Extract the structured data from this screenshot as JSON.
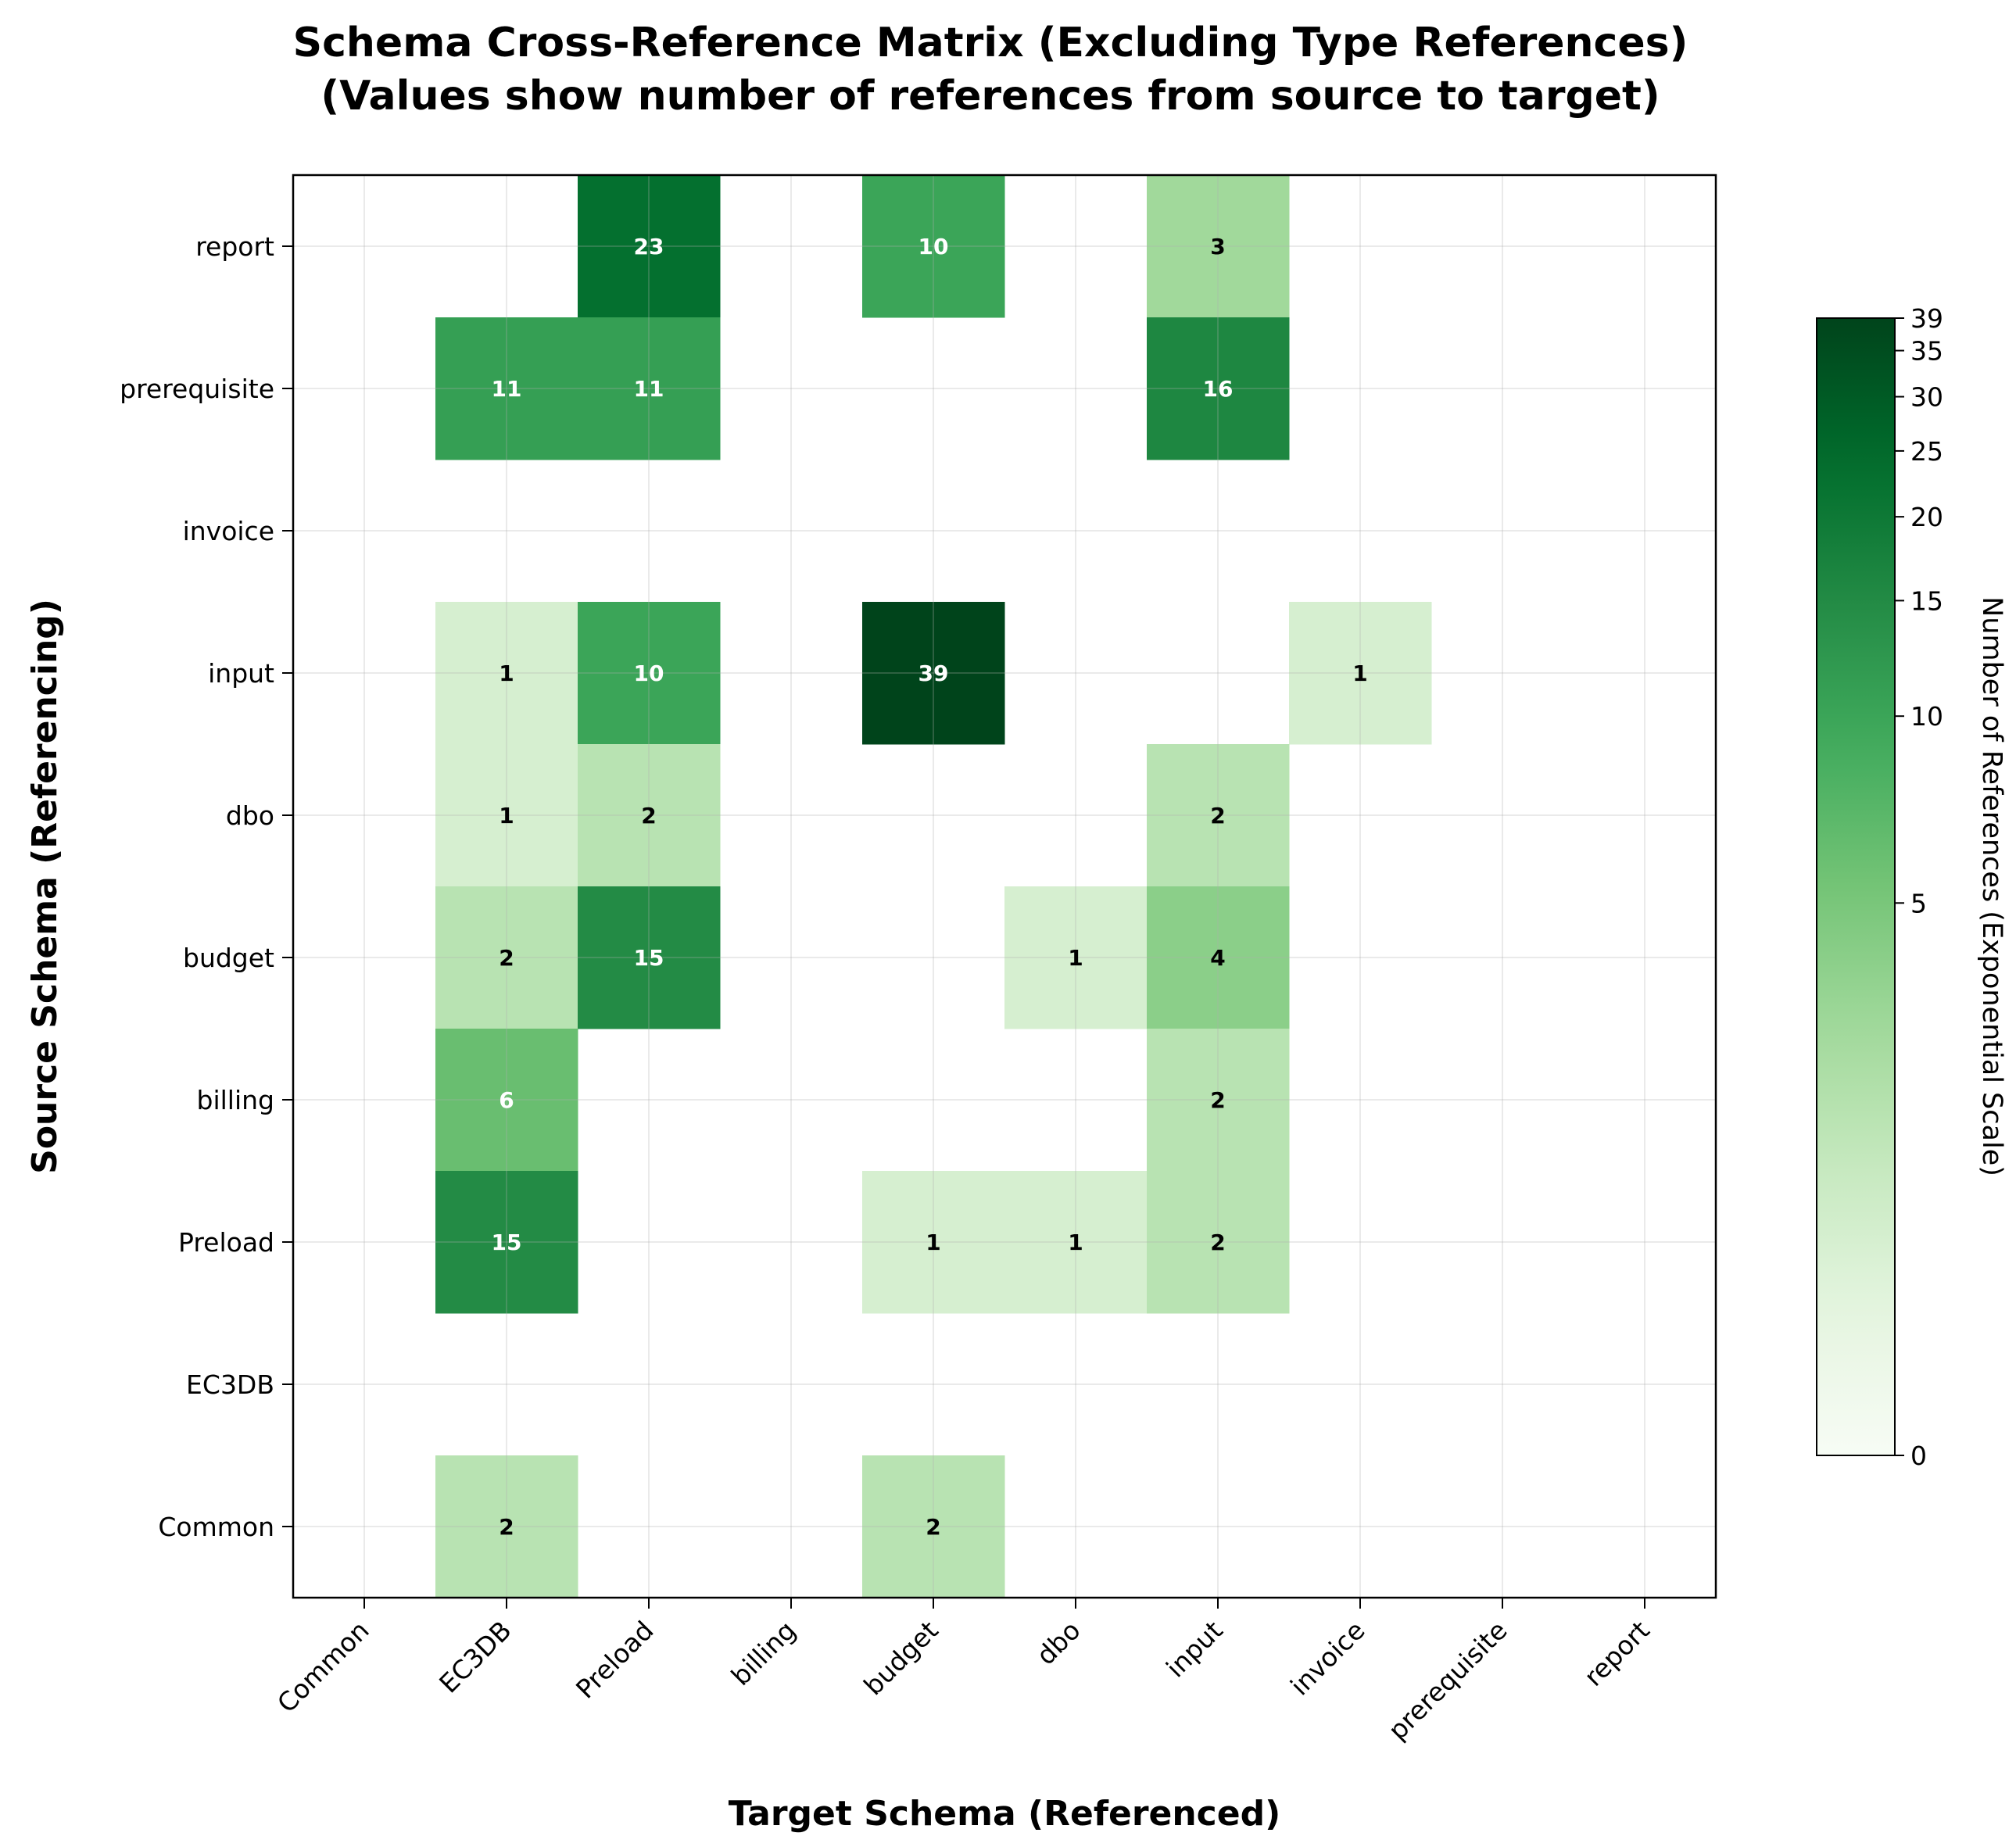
{
  "chart_data": {
    "type": "heatmap",
    "title": "Schema Cross-Reference Matrix (Excluding Type References)",
    "subtitle": "(Values show number of references from source to target)",
    "xlabel": "Target Schema (Referenced)",
    "ylabel": "Source Schema (Referencing)",
    "x_categories": [
      "Common",
      "EC3DB",
      "Preload",
      "billing",
      "budget",
      "dbo",
      "input",
      "invoice",
      "prerequisite",
      "report"
    ],
    "y_categories": [
      "report",
      "prerequisite",
      "invoice",
      "input",
      "dbo",
      "budget",
      "billing",
      "Preload",
      "EC3DB",
      "Common"
    ],
    "values": [
      [
        0,
        0,
        23,
        0,
        10,
        0,
        3,
        0,
        0,
        0
      ],
      [
        0,
        11,
        11,
        0,
        0,
        0,
        16,
        0,
        0,
        0
      ],
      [
        0,
        0,
        0,
        0,
        0,
        0,
        0,
        0,
        0,
        0
      ],
      [
        0,
        1,
        10,
        0,
        39,
        0,
        0,
        1,
        0,
        0
      ],
      [
        0,
        1,
        2,
        0,
        0,
        0,
        2,
        0,
        0,
        0
      ],
      [
        0,
        2,
        15,
        0,
        0,
        1,
        4,
        0,
        0,
        0
      ],
      [
        0,
        6,
        0,
        0,
        0,
        0,
        2,
        0,
        0,
        0
      ],
      [
        0,
        15,
        0,
        0,
        1,
        1,
        2,
        0,
        0,
        0
      ],
      [
        0,
        0,
        0,
        0,
        0,
        0,
        0,
        0,
        0,
        0
      ],
      [
        0,
        2,
        0,
        0,
        2,
        0,
        0,
        0,
        0,
        0
      ]
    ],
    "colorbar": {
      "label": "Number of References (Exponential Scale)",
      "min": 0,
      "max": 39,
      "ticks": [
        0,
        5,
        10,
        15,
        20,
        25,
        30,
        35,
        39
      ],
      "scale": "exponential"
    },
    "colormap": [
      "#f7fcf5",
      "#e5f5e0",
      "#c7e9c0",
      "#a1d99b",
      "#74c476",
      "#41ab5d",
      "#238b45",
      "#006d2c",
      "#00441b"
    ],
    "grid": true
  }
}
